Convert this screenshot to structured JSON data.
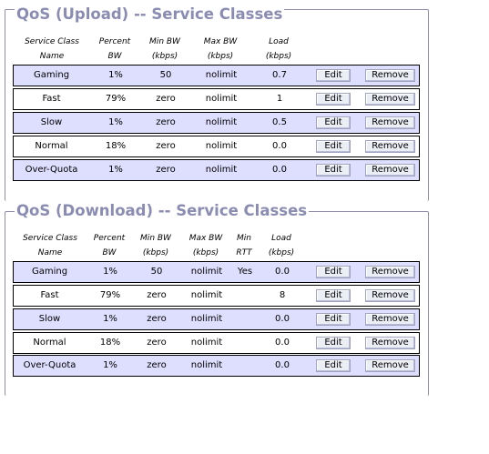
{
  "upload": {
    "title": "QoS (Upload) -- Service Classes",
    "headers": [
      [
        "Service Class",
        "Name"
      ],
      [
        "Percent",
        "BW"
      ],
      [
        "Min BW",
        "(kbps)"
      ],
      [
        "Max BW",
        "(kbps)"
      ],
      [
        "Load",
        "(kbps)"
      ]
    ],
    "rows": [
      {
        "name": "Gaming",
        "percent": "1%",
        "min": "50",
        "max": "nolimit",
        "load": "0.7"
      },
      {
        "name": "Fast",
        "percent": "79%",
        "min": "zero",
        "max": "nolimit",
        "load": "1"
      },
      {
        "name": "Slow",
        "percent": "1%",
        "min": "zero",
        "max": "nolimit",
        "load": "0.5"
      },
      {
        "name": "Normal",
        "percent": "18%",
        "min": "zero",
        "max": "nolimit",
        "load": "0.0"
      },
      {
        "name": "Over-Quota",
        "percent": "1%",
        "min": "zero",
        "max": "nolimit",
        "load": "0.0"
      }
    ]
  },
  "download": {
    "title": "QoS (Download) -- Service Classes",
    "headers": [
      [
        "Service Class",
        "Name"
      ],
      [
        "Percent",
        "BW"
      ],
      [
        "Min BW",
        "(kbps)"
      ],
      [
        "Max BW",
        "(kbps)"
      ],
      [
        "Min",
        "RTT"
      ],
      [
        "Load",
        "(kbps)"
      ]
    ],
    "rows": [
      {
        "name": "Gaming",
        "percent": "1%",
        "min": "50",
        "max": "nolimit",
        "rtt": "Yes",
        "load": "0.0"
      },
      {
        "name": "Fast",
        "percent": "79%",
        "min": "zero",
        "max": "nolimit",
        "rtt": "",
        "load": "8"
      },
      {
        "name": "Slow",
        "percent": "1%",
        "min": "zero",
        "max": "nolimit",
        "rtt": "",
        "load": "0.0"
      },
      {
        "name": "Normal",
        "percent": "18%",
        "min": "zero",
        "max": "nolimit",
        "rtt": "",
        "load": "0.0"
      },
      {
        "name": "Over-Quota",
        "percent": "1%",
        "min": "zero",
        "max": "nolimit",
        "rtt": "",
        "load": "0.0"
      }
    ]
  },
  "buttons": {
    "edit": "Edit",
    "remove": "Remove"
  }
}
